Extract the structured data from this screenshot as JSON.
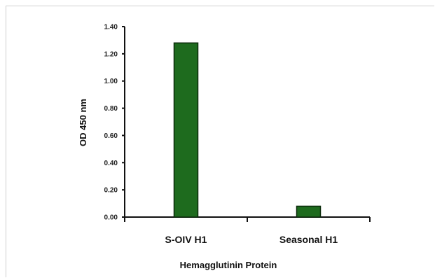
{
  "chart_data": {
    "type": "bar",
    "categories": [
      "S-OIV H1",
      "Seasonal H1"
    ],
    "values": [
      1.28,
      0.08
    ],
    "xlabel": "Hemagglutinin Protein",
    "ylabel": "OD 450 nm",
    "ylim": [
      0,
      1.4
    ],
    "yticks": [
      "0.00",
      "0.20",
      "0.40",
      "0.60",
      "0.80",
      "1.00",
      "1.20",
      "1.40"
    ],
    "grid": false,
    "legend": "none",
    "colors": {
      "bar_fill": "#1e6b1e",
      "bar_stroke": "#0a2a0a",
      "axis": "#111111"
    }
  }
}
